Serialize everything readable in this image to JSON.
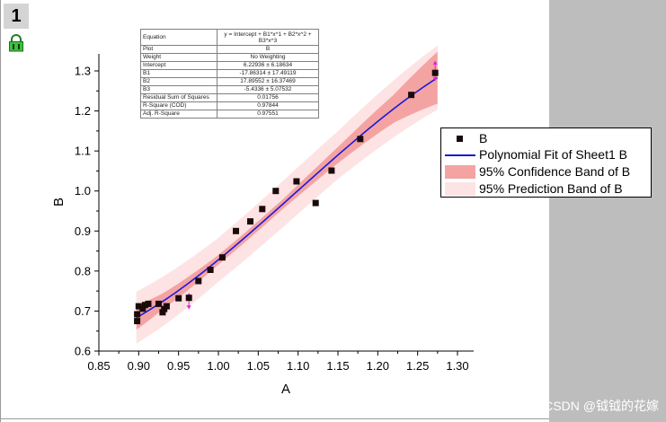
{
  "layer_tab": "1",
  "watermark": "CSDN @钺钺的花嫁",
  "stats_table": [
    {
      "label": "Equation",
      "value": "y = Intercept + B1*x^1 + B2*x^2 + B3*x^3"
    },
    {
      "label": "Plot",
      "value": "B"
    },
    {
      "label": "Weight",
      "value": "No Weighting"
    },
    {
      "label": "Intercept",
      "value": "6.22936 ± 6.18634"
    },
    {
      "label": "B1",
      "value": "-17.86314 ± 17.49119"
    },
    {
      "label": "B2",
      "value": "17.89552 ± 16.37469"
    },
    {
      "label": "B3",
      "value": "-5.4336 ± 5.07532"
    },
    {
      "label": "Residual Sum of Squares",
      "value": "0.01756"
    },
    {
      "label": "R-Square (COD)",
      "value": "0.97844"
    },
    {
      "label": "Adj. R-Square",
      "value": "0.97551"
    }
  ],
  "legend": [
    {
      "label": "B",
      "kind": "marker",
      "color": "#1a0a0a"
    },
    {
      "label": "Polynomial Fit of Sheet1 B",
      "kind": "line",
      "color": "#1a1ad6"
    },
    {
      "label": "95% Confidence Band of B",
      "kind": "band",
      "color": "#f4a3a3"
    },
    {
      "label": "95% Prediction Band of B",
      "kind": "band",
      "color": "#fde3e3"
    }
  ],
  "chart_data": {
    "type": "scatter",
    "xlabel": "A",
    "ylabel": "B",
    "xlim": [
      0.85,
      1.3
    ],
    "ylim": [
      0.6,
      1.35
    ],
    "xticks": [
      "0.85",
      "0.90",
      "0.95",
      "1.00",
      "1.05",
      "1.10",
      "1.15",
      "1.20",
      "1.25",
      "1.30"
    ],
    "yticks": [
      "0.6",
      "0.7",
      "0.8",
      "0.9",
      "1.0",
      "1.1",
      "1.2",
      "1.3"
    ],
    "series": [
      {
        "name": "B",
        "points": [
          [
            0.898,
            0.675
          ],
          [
            0.898,
            0.692
          ],
          [
            0.9,
            0.712
          ],
          [
            0.905,
            0.706
          ],
          [
            0.908,
            0.715
          ],
          [
            0.912,
            0.718
          ],
          [
            0.925,
            0.718
          ],
          [
            0.93,
            0.697
          ],
          [
            0.932,
            0.705
          ],
          [
            0.935,
            0.712
          ],
          [
            0.95,
            0.732
          ],
          [
            0.963,
            0.733
          ],
          [
            0.975,
            0.775
          ],
          [
            0.99,
            0.803
          ],
          [
            1.005,
            0.834
          ],
          [
            1.022,
            0.9
          ],
          [
            1.04,
            0.924
          ],
          [
            1.055,
            0.955
          ],
          [
            1.072,
            1.0
          ],
          [
            1.098,
            1.024
          ],
          [
            1.122,
            0.97
          ],
          [
            1.142,
            1.051
          ],
          [
            1.178,
            1.13
          ],
          [
            1.242,
            1.24
          ],
          [
            1.272,
            1.295
          ]
        ]
      },
      {
        "name": "Polynomial Fit of Sheet1 B",
        "coefficients": [
          6.22936,
          -17.86314,
          17.89552,
          -5.4336
        ],
        "x_range": [
          0.897,
          1.275
        ]
      }
    ],
    "confidence_halfwidth": {
      "x": [
        0.897,
        0.93,
        1.0,
        1.08,
        1.15,
        1.22,
        1.275
      ],
      "hw": [
        0.03,
        0.02,
        0.012,
        0.012,
        0.02,
        0.035,
        0.065
      ]
    },
    "prediction_halfwidth": {
      "x": [
        0.897,
        1.0,
        1.15,
        1.275
      ],
      "hw": [
        0.065,
        0.055,
        0.06,
        0.08
      ]
    }
  }
}
